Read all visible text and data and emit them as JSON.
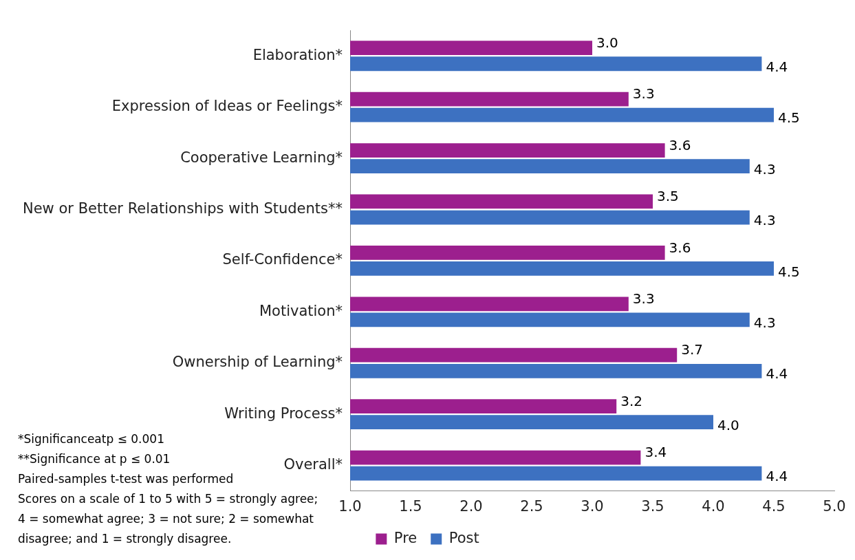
{
  "chart_data": {
    "type": "bar",
    "orientation": "horizontal",
    "categories": [
      "Elaboration*",
      "Expression of Ideas or Feelings*",
      "Cooperative Learning*",
      "New or Better Relationships with Students**",
      "Self-Confidence*",
      "Motivation*",
      "Ownership of Learning*",
      "Writing Process*",
      "Overall*"
    ],
    "series": [
      {
        "name": "Pre",
        "color": "#9c1f8e",
        "values": [
          3.0,
          3.3,
          3.6,
          3.5,
          3.6,
          3.3,
          3.7,
          3.2,
          3.4
        ]
      },
      {
        "name": "Post",
        "color": "#3d71c1",
        "values": [
          4.4,
          4.5,
          4.3,
          4.3,
          4.5,
          4.3,
          4.4,
          4.0,
          4.4
        ]
      }
    ],
    "value_labels": [
      [
        "3.0",
        "3.3",
        "3.6",
        "3.5",
        "3.6",
        "3.3",
        "3.7",
        "3.2",
        "3.4"
      ],
      [
        "4.4",
        "4.5",
        "4.3",
        "4.3",
        "4.5",
        "4.3",
        "4.4",
        "4.0",
        "4.4"
      ]
    ],
    "xlim": [
      1,
      5
    ],
    "xticks": [
      {
        "value": 1,
        "label": "1.0"
      },
      {
        "value": 1.5,
        "label": "1.5"
      },
      {
        "value": 2,
        "label": "2.0"
      },
      {
        "value": 2.5,
        "label": "2.5"
      },
      {
        "value": 3,
        "label": "3.0"
      },
      {
        "value": 3.5,
        "label": "3.5"
      },
      {
        "value": 4,
        "label": "4.0"
      },
      {
        "value": 4.5,
        "label": "4.5"
      },
      {
        "value": 5,
        "label": "5.0"
      }
    ],
    "grid": false,
    "legend": "bottom",
    "annotations": [
      "*Significanceatp ≤ 0.001",
      "**Significance at p ≤ 0.01",
      "Paired-samples t-test was performed",
      "Scores on a scale of 1 to 5 with 5 = strongly agree; 4 = somewhat agree; 3 = not sure; 2 = somewhat disagree; and 1 = strongly disagree."
    ]
  }
}
